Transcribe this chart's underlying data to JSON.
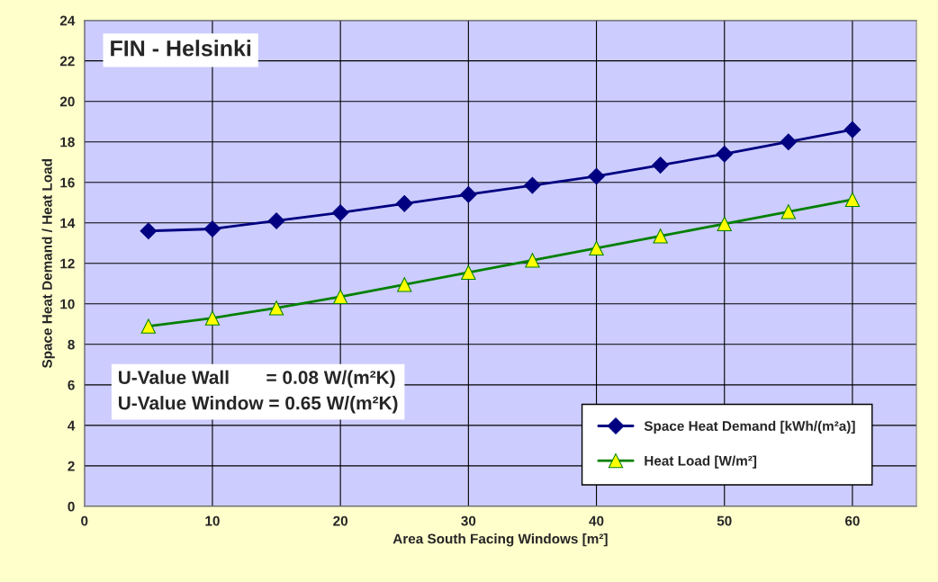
{
  "chart_data": {
    "type": "line",
    "title": "FIN - Helsinki",
    "xlabel": "Area South Facing Windows [m²]",
    "ylabel": "Space Heat Demand / Heat Load",
    "x": [
      5,
      10,
      15,
      20,
      25,
      30,
      35,
      40,
      45,
      50,
      55,
      60
    ],
    "series": [
      {
        "name": "Space Heat Demand [kWh/(m²a)]",
        "color": "#000080",
        "marker": "diamond",
        "values": [
          13.6,
          13.7,
          14.1,
          14.5,
          14.95,
          15.4,
          15.85,
          16.3,
          16.85,
          17.4,
          18.0,
          18.6
        ]
      },
      {
        "name": "Heat Load [W/m²]",
        "color": "#008000",
        "marker": "triangle",
        "values": [
          8.9,
          9.3,
          9.8,
          10.35,
          10.95,
          11.55,
          12.15,
          12.75,
          13.35,
          13.95,
          14.55,
          15.15
        ]
      }
    ],
    "annotations": [
      "U-Value Wall       = 0.08 W/(m²K)\nU-Value Window = 0.65 W/(m²K)"
    ],
    "xlim": [
      0,
      65
    ],
    "xticks": [
      0,
      10,
      20,
      30,
      40,
      50,
      60
    ],
    "ylim": [
      0,
      24
    ],
    "yticks": [
      0,
      2,
      4,
      6,
      8,
      10,
      12,
      14,
      16,
      18,
      20,
      22,
      24
    ],
    "grid": true,
    "legend": "bottom right",
    "line_style": "solid"
  }
}
